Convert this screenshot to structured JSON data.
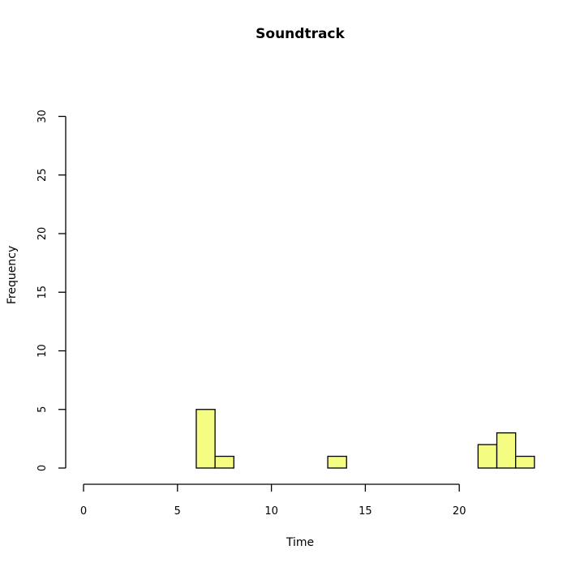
{
  "chart_data": {
    "type": "bar",
    "title": "Soundtrack",
    "xlabel": "Time",
    "ylabel": "Frequency",
    "xlim": [
      0,
      24
    ],
    "ylim": [
      0,
      30
    ],
    "x_ticks": [
      0,
      5,
      10,
      15,
      20
    ],
    "y_ticks": [
      0,
      5,
      10,
      15,
      20,
      25,
      30
    ],
    "bin_width": 1,
    "bin_starts": [
      0,
      1,
      2,
      3,
      4,
      5,
      6,
      7,
      8,
      9,
      10,
      11,
      12,
      13,
      14,
      15,
      16,
      17,
      18,
      19,
      20,
      21,
      22,
      23
    ],
    "values": [
      0,
      0,
      0,
      0,
      0,
      0,
      5,
      1,
      0,
      0,
      0,
      0,
      0,
      1,
      0,
      0,
      0,
      0,
      0,
      0,
      0,
      2,
      3,
      1
    ],
    "bar_color": "#f5fc82",
    "bar_border": "#000000",
    "grid": false
  }
}
